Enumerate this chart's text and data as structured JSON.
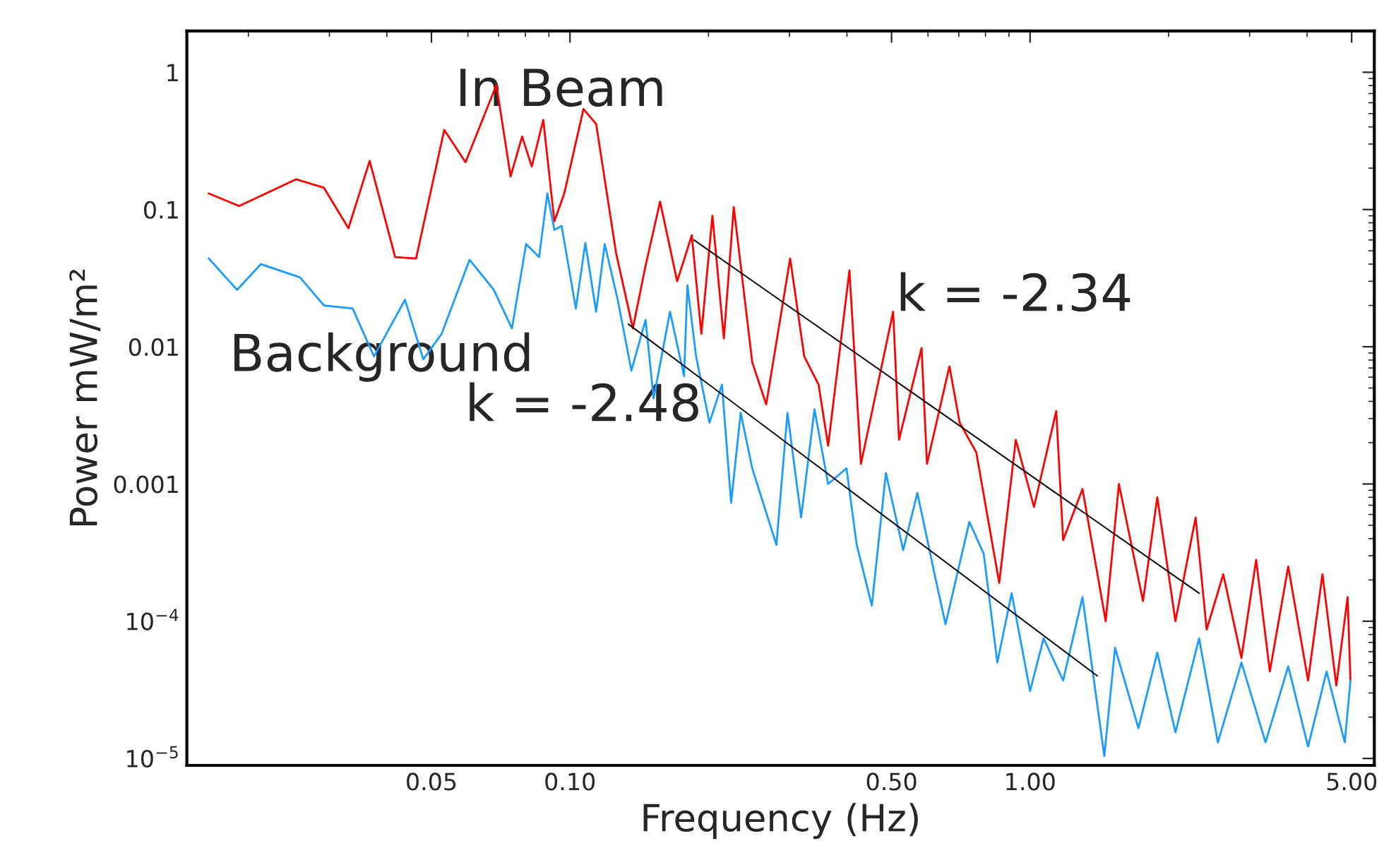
{
  "chart_data": {
    "type": "line",
    "xlabel": "Frequency (Hz)",
    "ylabel": "Power mW/m²",
    "log": "xy",
    "grid": false,
    "marker": "none",
    "line_style": "solid",
    "xlim": [
      0.0147,
      5.6
    ],
    "ylim": [
      8.9e-06,
      2
    ],
    "xticks": [
      {
        "value": 0.05,
        "label": "0.05"
      },
      {
        "value": 0.1,
        "label": "0.10"
      },
      {
        "value": 0.5,
        "label": "0.50"
      },
      {
        "value": 1,
        "label": "1.00"
      },
      {
        "value": 5,
        "label": "5.00"
      }
    ],
    "yticks": [
      {
        "value": 1e-05,
        "label": "10$^{−5}$"
      },
      {
        "value": 0.0001,
        "label": "10$^{−4}$"
      },
      0.001,
      0.01,
      0.1,
      1
    ],
    "series": [
      {
        "color": "#ff0000",
        "x": [
          0.0164,
          0.0191,
          0.0254,
          0.0292,
          0.033,
          0.0367,
          0.0417,
          0.0463,
          0.0533,
          0.0593,
          0.0692,
          0.0743,
          0.0787,
          0.0826,
          0.0875,
          0.0925,
          0.0972,
          0.107,
          0.114,
          0.126,
          0.137,
          0.146,
          0.157,
          0.171,
          0.184,
          0.193,
          0.204,
          0.216,
          0.227,
          0.249,
          0.267,
          0.301,
          0.323,
          0.347,
          0.364,
          0.405,
          0.429,
          0.504,
          0.519,
          0.581,
          0.597,
          0.668,
          0.703,
          0.764,
          0.857,
          0.931,
          1.02,
          1.14,
          1.18,
          1.3,
          1.46,
          1.56,
          1.76,
          1.89,
          2.07,
          2.29,
          2.42,
          2.63,
          2.88,
          3.1,
          3.32,
          3.64,
          4.02,
          4.32,
          4.63,
          4.9,
          4.97
        ],
        "values": [
          0.131,
          0.106,
          0.166,
          0.144,
          0.073,
          0.226,
          0.045,
          0.044,
          0.38,
          0.221,
          0.81,
          0.174,
          0.34,
          0.206,
          0.45,
          0.082,
          0.131,
          0.54,
          0.42,
          0.048,
          0.0136,
          0.039,
          0.114,
          0.03,
          0.065,
          0.0124,
          0.09,
          0.0115,
          0.104,
          0.0077,
          0.0038,
          0.044,
          0.0085,
          0.0053,
          0.0019,
          0.036,
          0.0014,
          0.018,
          0.0021,
          0.0098,
          0.0014,
          0.0072,
          0.0028,
          0.0017,
          0.00019,
          0.0021,
          0.00068,
          0.0034,
          0.00039,
          0.00092,
          0.0001,
          0.001,
          0.00014,
          0.0008,
          0.0001,
          0.00057,
          8.7e-05,
          0.00022,
          5.4e-05,
          0.00028,
          4.3e-05,
          0.00025,
          3.7e-05,
          0.00022,
          3.4e-05,
          0.00015,
          3.7e-05
        ]
      },
      {
        "color": "#1a9bff",
        "x": [
          0.0164,
          0.0189,
          0.0213,
          0.0259,
          0.0292,
          0.0337,
          0.0375,
          0.0438,
          0.048,
          0.0526,
          0.0605,
          0.0683,
          0.0748,
          0.0803,
          0.0857,
          0.0893,
          0.0925,
          0.0959,
          0.103,
          0.108,
          0.114,
          0.119,
          0.127,
          0.136,
          0.146,
          0.152,
          0.165,
          0.177,
          0.18,
          0.188,
          0.201,
          0.214,
          0.224,
          0.235,
          0.249,
          0.281,
          0.297,
          0.318,
          0.34,
          0.364,
          0.399,
          0.42,
          0.453,
          0.486,
          0.53,
          0.569,
          0.622,
          0.655,
          0.738,
          0.793,
          0.849,
          0.912,
          1.0,
          1.07,
          1.18,
          1.3,
          1.45,
          1.53,
          1.72,
          1.89,
          2.07,
          2.33,
          2.56,
          2.88,
          3.25,
          3.64,
          4.02,
          4.41,
          4.83,
          4.97
        ],
        "values": [
          0.044,
          0.026,
          0.04,
          0.032,
          0.02,
          0.019,
          0.0085,
          0.022,
          0.0081,
          0.0124,
          0.043,
          0.026,
          0.0136,
          0.056,
          0.045,
          0.131,
          0.071,
          0.076,
          0.019,
          0.057,
          0.018,
          0.056,
          0.022,
          0.0067,
          0.0157,
          0.0042,
          0.018,
          0.0061,
          0.028,
          0.0085,
          0.0028,
          0.0053,
          0.00073,
          0.0033,
          0.0013,
          0.00036,
          0.0033,
          0.00057,
          0.0035,
          0.001,
          0.0013,
          0.00036,
          0.00013,
          0.0012,
          0.00033,
          0.00086,
          0.00021,
          9.5e-05,
          0.00053,
          0.00031,
          5e-05,
          0.00016,
          3.1e-05,
          7.5e-05,
          3.7e-05,
          0.00015,
          1.04e-05,
          6.4e-05,
          1.66e-05,
          5.9e-05,
          1.55e-05,
          7.5e-05,
          1.31e-05,
          5e-05,
          1.31e-05,
          4.7e-05,
          1.22e-05,
          4.3e-05,
          1.31e-05,
          3.7e-05
        ]
      },
      {
        "type": "line",
        "color": "#000000",
        "x": [
          0.186,
          2.33
        ],
        "values": [
          0.06,
          0.00016
        ]
      },
      {
        "type": "line",
        "color": "#000000",
        "x": [
          0.134,
          1.4
        ],
        "values": [
          0.0146,
          4e-05
        ]
      }
    ],
    "annotations": [
      "In Beam",
      "Background",
      "k = -2.34",
      "k = -2.48"
    ]
  }
}
